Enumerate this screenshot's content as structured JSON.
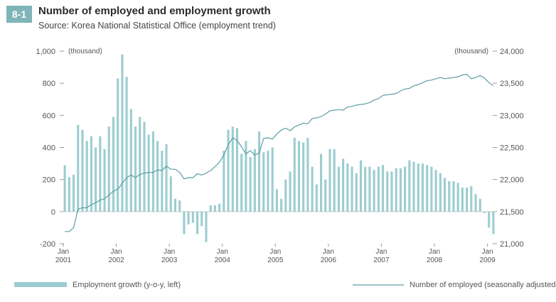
{
  "header": {
    "badge": "8-1",
    "title": "Number of employed and employment growth",
    "subtitle": "Source: Korea National Statistical Office (employment trend)"
  },
  "colors": {
    "bar": "#9ccdd0",
    "line": "#5e9ea6",
    "badge": "#7fb4b8",
    "axis": "#9a9a9a"
  },
  "chart_data": {
    "type": "bar+line",
    "left_axis": {
      "unit_label": "(thousand)",
      "ticks": [
        "1,000",
        "800",
        "600",
        "400",
        "200",
        "0",
        "-200"
      ],
      "tick_values": [
        1000,
        800,
        600,
        400,
        200,
        0,
        -200
      ],
      "ylim": [
        -200,
        1000
      ]
    },
    "right_axis": {
      "unit_label": "(thousand)",
      "ticks": [
        "24,000",
        "23,500",
        "23,000",
        "22,500",
        "22,000",
        "21,500",
        "21,000"
      ],
      "tick_values": [
        24000,
        23500,
        23000,
        22500,
        22000,
        21500,
        21000
      ],
      "ylim": [
        21000,
        24000
      ]
    },
    "x_ticks": [
      {
        "month_index": 0,
        "line1": "Jan",
        "line2": "2001"
      },
      {
        "month_index": 12,
        "line1": "Jan",
        "line2": "2002"
      },
      {
        "month_index": 24,
        "line1": "Jan",
        "line2": "2003"
      },
      {
        "month_index": 36,
        "line1": "Jan",
        "line2": "2004"
      },
      {
        "month_index": 48,
        "line1": "Jan",
        "line2": "2005"
      },
      {
        "month_index": 60,
        "line1": "Jan",
        "line2": "2006"
      },
      {
        "month_index": 72,
        "line1": "Jan",
        "line2": "2007"
      },
      {
        "month_index": 84,
        "line1": "Jan",
        "line2": "2008"
      },
      {
        "month_index": 96,
        "line1": "Jan",
        "line2": "2009"
      }
    ],
    "months_total": 98,
    "series": [
      {
        "name": "Employment growth (y-o-y, left)",
        "type": "bar",
        "values": [
          290,
          215,
          230,
          540,
          510,
          440,
          470,
          400,
          470,
          390,
          530,
          590,
          830,
          980,
          840,
          640,
          530,
          590,
          560,
          480,
          500,
          440,
          380,
          420,
          220,
          80,
          70,
          -140,
          -80,
          -70,
          -140,
          -90,
          -190,
          40,
          40,
          50,
          380,
          510,
          530,
          520,
          360,
          440,
          340,
          390,
          500,
          370,
          380,
          400,
          140,
          80,
          200,
          250,
          460,
          440,
          430,
          460,
          280,
          170,
          360,
          200,
          390,
          390,
          280,
          330,
          300,
          280,
          240,
          320,
          280,
          280,
          260,
          280,
          290,
          250,
          250,
          270,
          270,
          280,
          320,
          310,
          300,
          300,
          290,
          280,
          260,
          240,
          210,
          190,
          190,
          180,
          150,
          150,
          160,
          110,
          80,
          -10,
          -100,
          -140
        ]
      },
      {
        "name": "Number of employed (seasonally adjusted, right)",
        "type": "line",
        "values": [
          21190,
          21190,
          21250,
          21540,
          21560,
          21560,
          21610,
          21640,
          21680,
          21700,
          21760,
          21820,
          21850,
          21940,
          22030,
          22070,
          22030,
          22080,
          22100,
          22110,
          22110,
          22150,
          22140,
          22210,
          22160,
          22160,
          22110,
          22010,
          22030,
          22030,
          22090,
          22070,
          22100,
          22140,
          22200,
          22270,
          22380,
          22540,
          22650,
          22610,
          22510,
          22400,
          22450,
          22380,
          22410,
          22640,
          22650,
          22630,
          22710,
          22770,
          22800,
          22760,
          22820,
          22850,
          22880,
          22870,
          22950,
          22960,
          22980,
          23020,
          23070,
          23080,
          23090,
          23080,
          23130,
          23140,
          23160,
          23170,
          23180,
          23200,
          23240,
          23260,
          23310,
          23320,
          23330,
          23340,
          23380,
          23410,
          23420,
          23460,
          23480,
          23510,
          23540,
          23550,
          23570,
          23590,
          23570,
          23580,
          23590,
          23600,
          23630,
          23640,
          23570,
          23590,
          23620,
          23580,
          23510,
          23460
        ]
      }
    ],
    "legend": {
      "position": "bottom",
      "bar_label": "Employment growth (y-o-y, left)",
      "line_label": "Number of employed (seasonally adjusted, right)"
    },
    "grid": false
  }
}
